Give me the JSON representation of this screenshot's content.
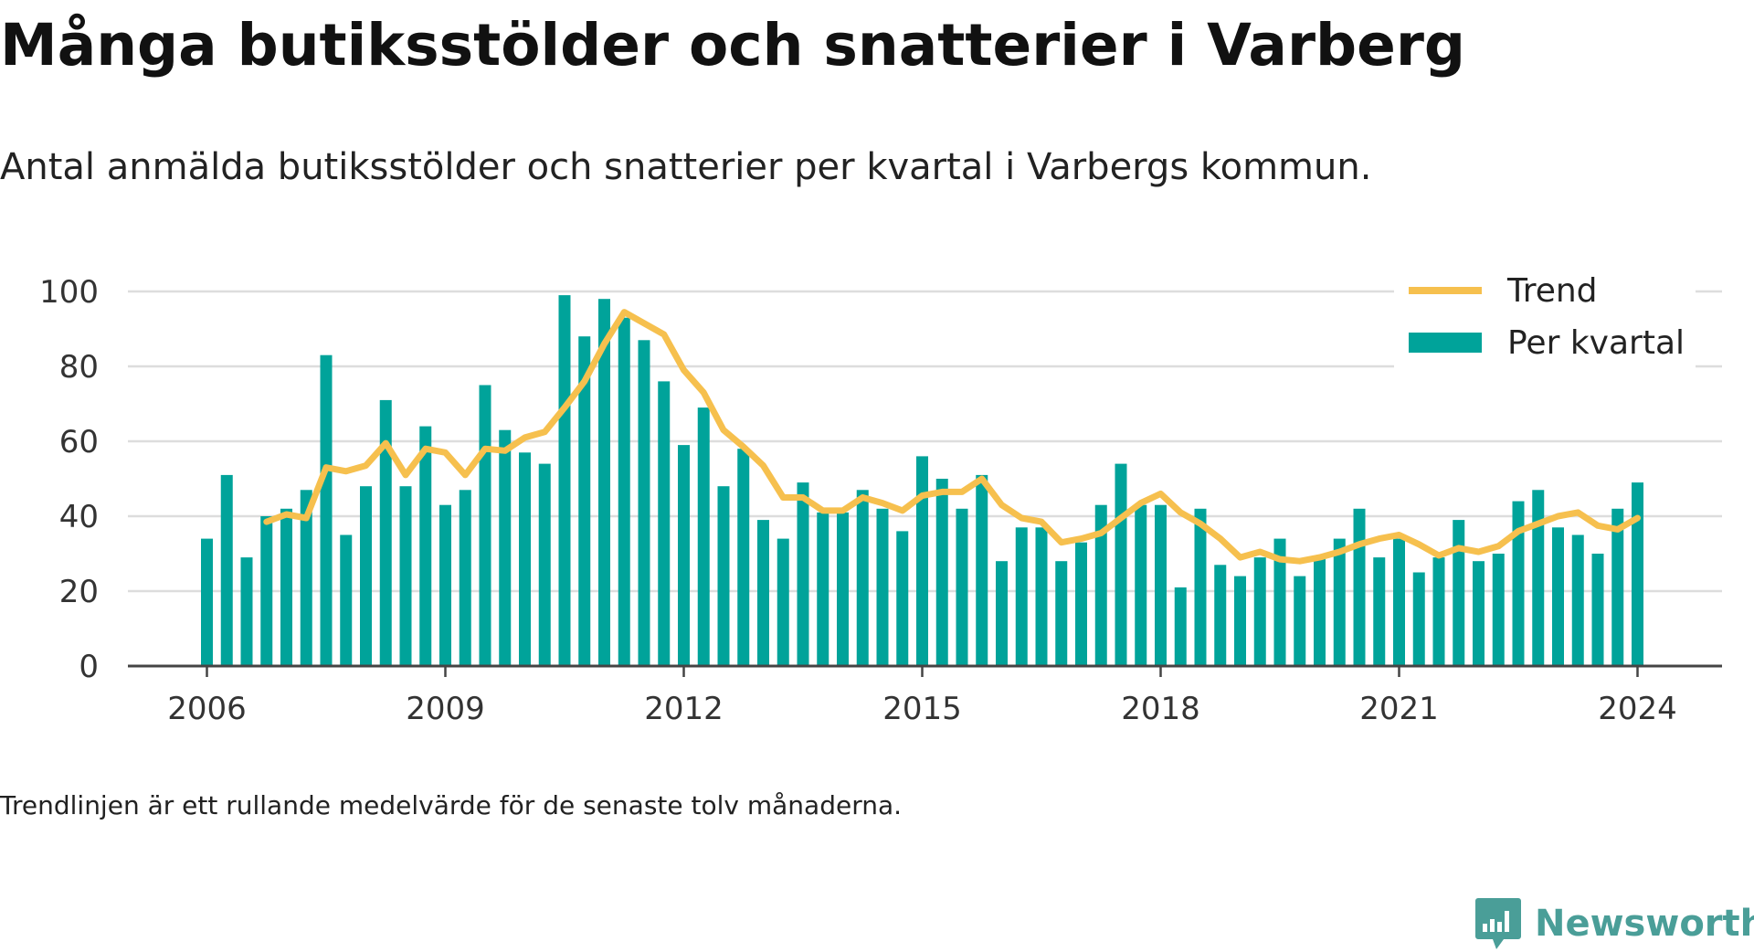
{
  "title": "Många butiksstölder och snatterier i Varberg",
  "subtitle": "Antal anmälda butiksstölder och snatterier per kvartal i Varbergs kommun.",
  "footnote": "Trendlinjen är ett rullande medelvärde för de senaste tolv månaderna.",
  "brand": {
    "name": "Newsworthy",
    "icon": "bar-chart-logo-icon",
    "color": "#4a9e98"
  },
  "chart_data": {
    "type": "bar",
    "x_start": "2006 Q1",
    "x_step": "1 quarter",
    "xticks": [
      "2006",
      "2009",
      "2012",
      "2015",
      "2018",
      "2021",
      "2024"
    ],
    "yticks": [
      0,
      20,
      40,
      60,
      80,
      100
    ],
    "ylim": [
      0,
      100
    ],
    "grid": true,
    "legend_position": "top-right",
    "xlabel": "",
    "ylabel": "",
    "colors": {
      "bars": "#00a39a",
      "trend": "#f6c04e",
      "grid": "#dddddd",
      "axis": "#444444"
    },
    "series": [
      {
        "name": "Per kvartal",
        "kind": "bar",
        "values": [
          34,
          51,
          29,
          40,
          42,
          47,
          83,
          35,
          48,
          71,
          48,
          64,
          43,
          47,
          75,
          63,
          57,
          54,
          99,
          88,
          98,
          93,
          87,
          76,
          59,
          69,
          48,
          58,
          39,
          34,
          49,
          41,
          41,
          47,
          42,
          36,
          56,
          50,
          42,
          51,
          28,
          37,
          37,
          28,
          33,
          43,
          54,
          43,
          43,
          21,
          42,
          27,
          24,
          29,
          34,
          24,
          29,
          34,
          42,
          29,
          34,
          25,
          29,
          39,
          28,
          30,
          44,
          47,
          37,
          35,
          30,
          42,
          49
        ]
      },
      {
        "name": "Trend",
        "kind": "line",
        "values": [
          null,
          null,
          null,
          38.5,
          40.5,
          39.5,
          53,
          52,
          53.5,
          59.5,
          51,
          58,
          57,
          51,
          58,
          57.5,
          61,
          62.5,
          69,
          76,
          86,
          94.5,
          91.5,
          88.5,
          79,
          73,
          63,
          58.5,
          53.5,
          45,
          45,
          41.5,
          41.5,
          45,
          43.5,
          41.5,
          45.5,
          46.5,
          46.5,
          50,
          43,
          39.5,
          38.5,
          33,
          34,
          35.5,
          39.5,
          43.5,
          46,
          41,
          38,
          34,
          29,
          30.5,
          28.5,
          28,
          29,
          30.5,
          32.5,
          34,
          35,
          32.5,
          29.5,
          31.5,
          30.5,
          32,
          36,
          38,
          40,
          41,
          37.5,
          36.5,
          39.5
        ]
      }
    ]
  }
}
